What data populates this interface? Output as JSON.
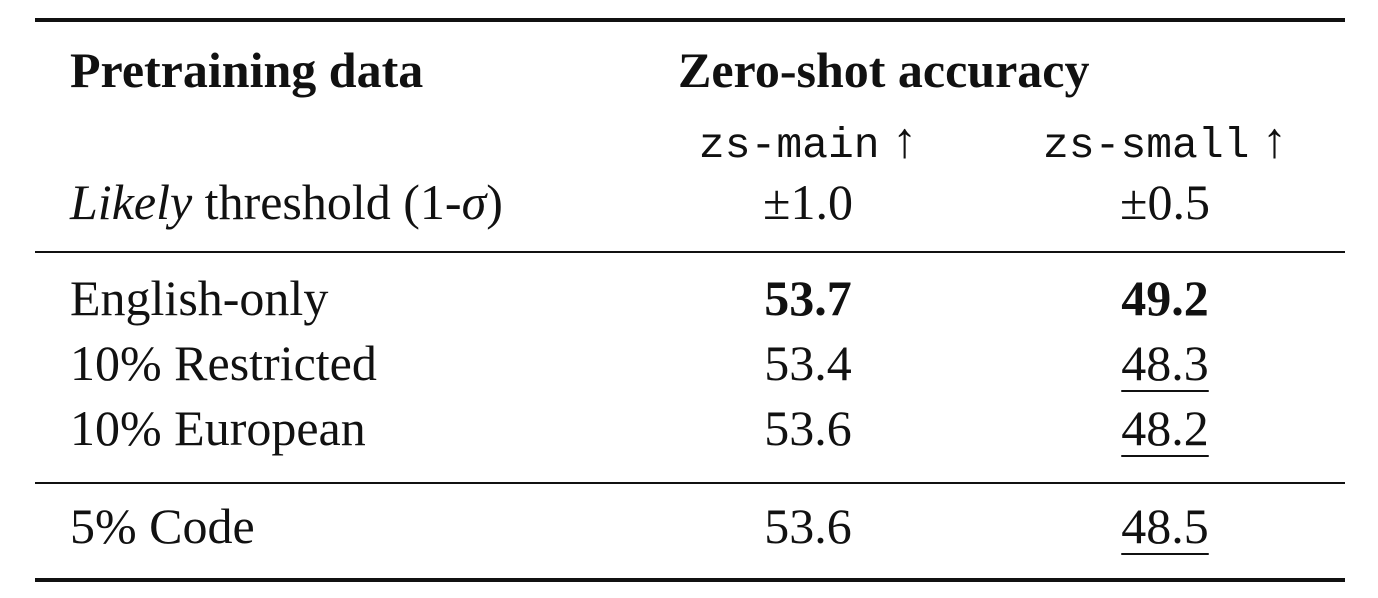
{
  "table": {
    "header": {
      "col0": "Pretraining data",
      "group": "Zero-shot accuracy",
      "sub": [
        "zs-main",
        "zs-small"
      ],
      "arrow": "↑"
    },
    "threshold": {
      "parts": [
        "Likely",
        "threshold (1-",
        "σ",
        ")"
      ],
      "values": [
        "±1.0",
        "±0.5"
      ]
    },
    "rows": [
      [
        "English-only",
        53.7,
        49.2
      ],
      [
        "10% Restricted",
        53.4,
        48.3
      ],
      [
        "10% European",
        53.6,
        48.2
      ],
      [
        "5% Code",
        53.6,
        48.5
      ]
    ]
  }
}
